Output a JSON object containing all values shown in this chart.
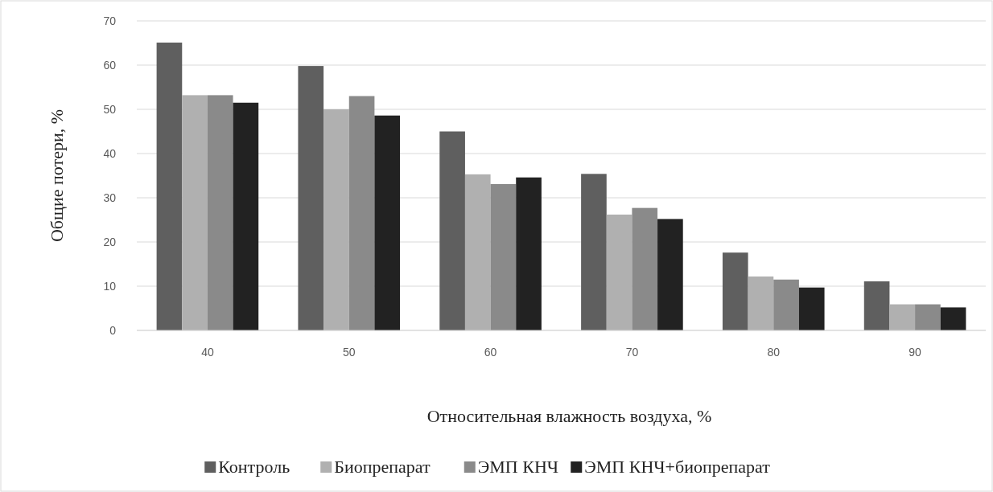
{
  "chart_data": {
    "type": "bar",
    "xlabel": "Относительная влажность воздуха, %",
    "ylabel": "Общие потери, %",
    "categories": [
      "40",
      "50",
      "60",
      "70",
      "80",
      "90"
    ],
    "series": [
      {
        "name": "Контроль",
        "color": "#5f5f5f",
        "values": [
          65.1,
          59.8,
          45.0,
          35.4,
          17.6,
          11.1
        ]
      },
      {
        "name": "Биопрепарат",
        "color": "#b0b0b0",
        "values": [
          53.2,
          50.0,
          35.3,
          26.2,
          12.2,
          5.9
        ]
      },
      {
        "name": "ЭМП КНЧ",
        "color": "#8a8a8a",
        "values": [
          53.2,
          53.0,
          33.1,
          27.7,
          11.5,
          5.9
        ]
      },
      {
        "name": "ЭМП КНЧ+биопрепарат",
        "color": "#222222",
        "values": [
          51.5,
          48.6,
          34.6,
          25.2,
          9.7,
          5.2
        ]
      }
    ],
    "ylim": [
      0,
      70
    ],
    "yticks": [
      0,
      10,
      20,
      30,
      40,
      50,
      60,
      70
    ],
    "grid": "y",
    "legend": "bottom"
  }
}
